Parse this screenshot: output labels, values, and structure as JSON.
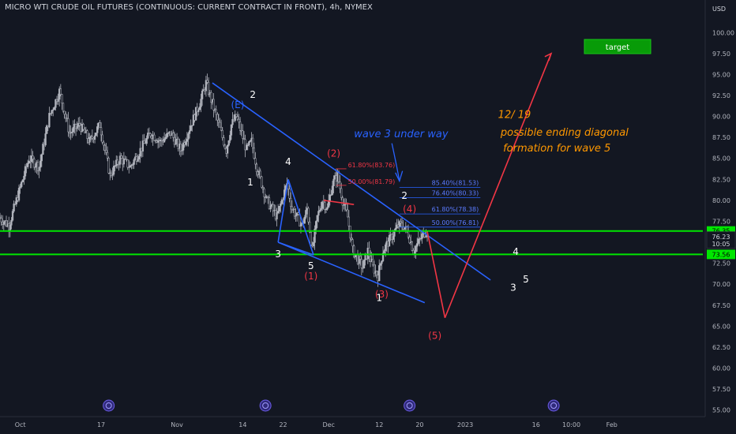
{
  "header": {
    "title": "MICRO WTI CRUDE OIL FUTURES (CONTINUOUS: CURRENT CONTRACT IN FRONT), 4h, NYMEX",
    "currency": "USD"
  },
  "colors": {
    "background": "#131722",
    "candle": "#b2b5be",
    "blue_line": "#2962ff",
    "green_line": "#00e600",
    "red": "#f23645",
    "orange": "#ff9800",
    "target_box": "#089b08",
    "badge_blue": "#2f2a7a"
  },
  "chart_data": {
    "type": "candlestick",
    "ylim": [
      54.5,
      102
    ],
    "y_ticks": [
      55,
      57.5,
      60,
      62.5,
      65,
      67.5,
      70,
      72.5,
      75,
      77.5,
      80,
      82.5,
      85,
      87.5,
      90,
      92.5,
      95,
      97.5,
      100
    ],
    "y_tick_labels": [
      "55.00",
      "57.50",
      "60.00",
      "62.50",
      "65.00",
      "67.50",
      "70.00",
      "72.50",
      "75.00",
      "77.50",
      "80.00",
      "82.50",
      "85.00",
      "87.50",
      "90.00",
      "92.50",
      "95.00",
      "97.50",
      "100.00"
    ],
    "x_range_days": [
      0,
      139
    ],
    "x_ticks": [
      {
        "label": "Oct",
        "day": 4
      },
      {
        "label": "17",
        "day": 20
      },
      {
        "label": "Nov",
        "day": 35
      },
      {
        "label": "14",
        "day": 48
      },
      {
        "label": "22",
        "day": 56
      },
      {
        "label": "Dec",
        "day": 65
      },
      {
        "label": "12",
        "day": 75
      },
      {
        "label": "20",
        "day": 83
      },
      {
        "label": "2023",
        "day": 92
      },
      {
        "label": "16",
        "day": 106
      },
      {
        "label": "10:00",
        "day": 113
      },
      {
        "label": "Feb",
        "day": 121
      }
    ],
    "price_path": [
      [
        0,
        78
      ],
      [
        2,
        77
      ],
      [
        4,
        81
      ],
      [
        6,
        85
      ],
      [
        8,
        84
      ],
      [
        10,
        90
      ],
      [
        12,
        93
      ],
      [
        14,
        88
      ],
      [
        16,
        89
      ],
      [
        18,
        87
      ],
      [
        20,
        89
      ],
      [
        22,
        83
      ],
      [
        24,
        85
      ],
      [
        26,
        84
      ],
      [
        28,
        86
      ],
      [
        30,
        88
      ],
      [
        32,
        87
      ],
      [
        34,
        88
      ],
      [
        36,
        86
      ],
      [
        38,
        89
      ],
      [
        40,
        92
      ],
      [
        41,
        94
      ],
      [
        43,
        90
      ],
      [
        45,
        86
      ],
      [
        46,
        89
      ],
      [
        47,
        90
      ],
      [
        48,
        88
      ],
      [
        49,
        86
      ],
      [
        50,
        87
      ],
      [
        51,
        84
      ],
      [
        53,
        80
      ],
      [
        55,
        78
      ],
      [
        56,
        80
      ],
      [
        57,
        82
      ],
      [
        58,
        79
      ],
      [
        60,
        77
      ],
      [
        61,
        79
      ],
      [
        62,
        74
      ],
      [
        63,
        78
      ],
      [
        64,
        80
      ],
      [
        65,
        79
      ],
      [
        66,
        82
      ],
      [
        67,
        83
      ],
      [
        68,
        80
      ],
      [
        69,
        78
      ],
      [
        70,
        74
      ],
      [
        72,
        72
      ],
      [
        73,
        74
      ],
      [
        74,
        72
      ],
      [
        75,
        71
      ],
      [
        76,
        74
      ],
      [
        78,
        76
      ],
      [
        79,
        77
      ],
      [
        80,
        77
      ],
      [
        81,
        76
      ],
      [
        82,
        74
      ],
      [
        83,
        75
      ],
      [
        84,
        76
      ],
      [
        84.5,
        76.3
      ]
    ],
    "horizontal_levels": [
      {
        "price": 76.35,
        "label": "76.35"
      },
      {
        "price": 73.56,
        "label": "73.56"
      }
    ],
    "current_price": {
      "price": 76.23,
      "label": "76.23",
      "countdown": "10:05"
    },
    "trendlines": [
      {
        "from": [
          42,
          94
        ],
        "to": [
          97,
          70.5
        ],
        "color": "blue"
      },
      {
        "from": [
          55,
          75
        ],
        "to": [
          84,
          67.8
        ],
        "color": "blue"
      },
      {
        "from": [
          55,
          75
        ],
        "to": [
          62,
          73.5
        ],
        "color": "blue"
      },
      {
        "from": [
          62,
          73.5
        ],
        "to": [
          57,
          82.5
        ],
        "color": "blue"
      },
      {
        "from": [
          57,
          82.5
        ],
        "to": [
          55,
          75
        ],
        "color": "blue"
      },
      {
        "from": [
          64,
          80
        ],
        "to": [
          70,
          79.5
        ],
        "color": "red"
      },
      {
        "from": [
          84.5,
          76.3
        ],
        "to": [
          88,
          66
        ],
        "color": "red"
      },
      {
        "from": [
          88,
          66
        ],
        "to": [
          109,
          97.5
        ],
        "color": "red"
      }
    ],
    "fib_levels": [
      {
        "label": "85.40%(81.53)",
        "price": 81.53
      },
      {
        "label": "76.40%(80.33)",
        "price": 80.33
      },
      {
        "label": "61.80%(78.38)",
        "price": 78.38
      },
      {
        "label": "50.00%(76.81)",
        "price": 76.81
      }
    ],
    "fib_levels_upper": [
      {
        "label": "61.80%(83.76)",
        "price": 83.76
      },
      {
        "label": "50.00%(81.79)",
        "price": 81.79
      }
    ],
    "wave_labels": [
      {
        "text": "(E)",
        "day": 47,
        "price": 91,
        "color": "blue"
      },
      {
        "text": "2",
        "day": 50,
        "price": 92.2,
        "color": "white"
      },
      {
        "text": "4",
        "day": 57,
        "price": 84.2,
        "color": "white"
      },
      {
        "text": "1",
        "day": 49.5,
        "price": 81.8,
        "color": "white"
      },
      {
        "text": "3",
        "day": 55,
        "price": 73.2,
        "color": "white"
      },
      {
        "text": "5",
        "day": 61.5,
        "price": 71.8,
        "color": "white"
      },
      {
        "text": "(1)",
        "day": 61.5,
        "price": 70.6,
        "color": "red"
      },
      {
        "text": "(2)",
        "day": 66,
        "price": 85.2,
        "color": "red"
      },
      {
        "text": "2",
        "day": 80,
        "price": 80.2,
        "color": "white"
      },
      {
        "text": "(4)",
        "day": 81,
        "price": 78.6,
        "color": "red"
      },
      {
        "text": "(3)",
        "day": 75.5,
        "price": 68.4,
        "color": "red"
      },
      {
        "text": "1",
        "day": 75,
        "price": 68,
        "color": "white"
      },
      {
        "text": "(5)",
        "day": 86,
        "price": 63.5,
        "color": "red"
      },
      {
        "text": "4",
        "day": 102,
        "price": 73.5,
        "color": "white"
      },
      {
        "text": "3",
        "day": 101.5,
        "price": 69.2,
        "color": "white"
      },
      {
        "text": "5",
        "day": 104,
        "price": 70.2,
        "color": "white"
      }
    ],
    "annotations": [
      {
        "text": "wave 3 under way",
        "day": 70,
        "price": 87.5,
        "color": "blue"
      },
      {
        "text": "12/ 19",
        "day": 98.5,
        "price": 89.8,
        "color": "orange"
      },
      {
        "text": "possible ending diagonal",
        "day": 99,
        "price": 87.7,
        "color": "orange"
      },
      {
        "text": "formation for wave 5",
        "day": 99.5,
        "price": 85.8,
        "color": "orange"
      }
    ],
    "target_label": "target",
    "event_markers": [
      21.5,
      52.5,
      81,
      109.5
    ]
  }
}
